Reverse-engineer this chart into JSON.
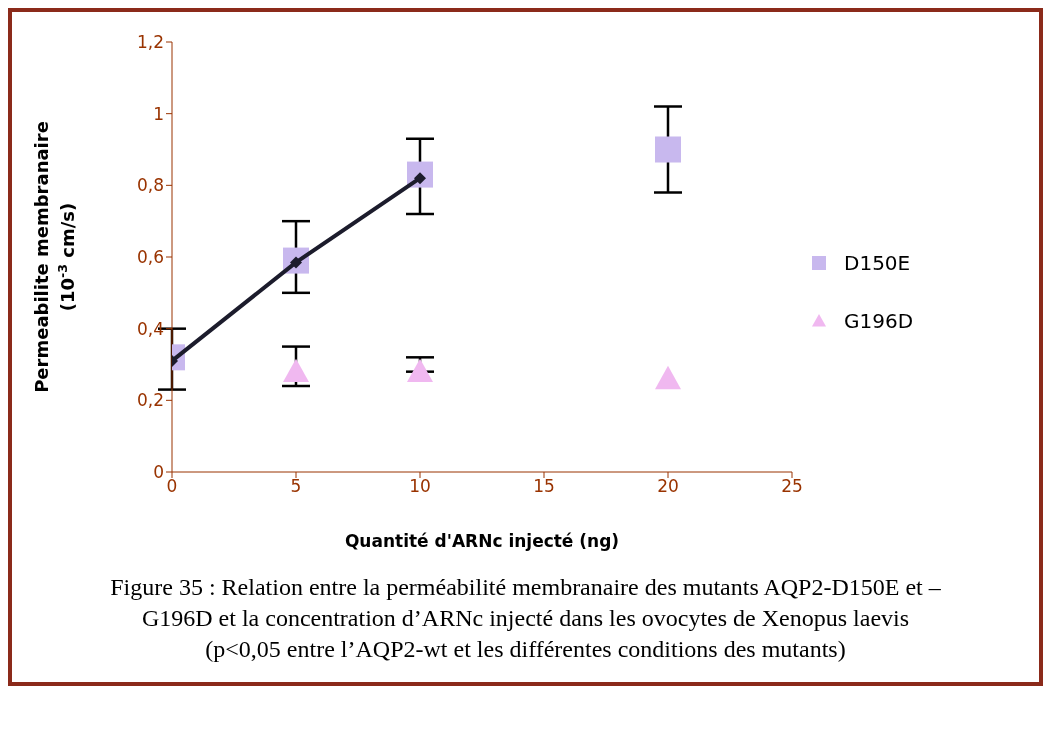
{
  "chart_data": {
    "type": "scatter",
    "xlabel": "Quantité d'ARNc injecté (ng)",
    "ylabel": "Permeabilite membranaire (10$^{-3}$ cm/s)",
    "x": [
      0,
      5,
      10,
      20
    ],
    "series": [
      {
        "name": "D150E",
        "color": "#c8b8ee",
        "marker": "square",
        "values": [
          0.32,
          0.59,
          0.83,
          0.9
        ],
        "errors": [
          [
            0.23,
            0.4
          ],
          [
            0.5,
            0.7
          ],
          [
            0.72,
            0.93
          ],
          [
            0.78,
            1.02
          ]
        ]
      },
      {
        "name": "G196D",
        "color": "#f0b8f0",
        "marker": "triangle",
        "values": [
          null,
          0.28,
          0.28,
          0.26
        ],
        "errors": [
          null,
          [
            0.24,
            0.35
          ],
          [
            0.28,
            0.32
          ],
          null
        ]
      },
      {
        "type": "line",
        "color": "#1c1c2c",
        "marker": "diamond",
        "x": [
          0,
          5,
          10
        ],
        "values": [
          0.31,
          0.585,
          0.82
        ]
      }
    ],
    "xlim": [
      0,
      25
    ],
    "xticks": [
      0,
      5,
      10,
      15,
      20,
      25
    ],
    "ylim": [
      0,
      1.2
    ],
    "yticks": [
      0,
      {
        "value": 0.2,
        "label": "0,2"
      },
      {
        "value": 0.4,
        "label": "0,4"
      },
      {
        "value": 0.6,
        "label": "0,6"
      },
      {
        "value": 0.8,
        "label": "0,8"
      },
      1,
      {
        "value": 1.2,
        "label": "1,2"
      }
    ],
    "grid": false,
    "legend": "right",
    "annotations": [
      "Figure 35 : Relation entre la perméabilité membranaire des mutants AQP2-D150E et –G196D et la concentration d’ARNc injecté dans les ovocytes de Xenopus laevis (p<0,05 entre l’AQP2-wt et les différentes conditions des mutants)"
    ]
  }
}
